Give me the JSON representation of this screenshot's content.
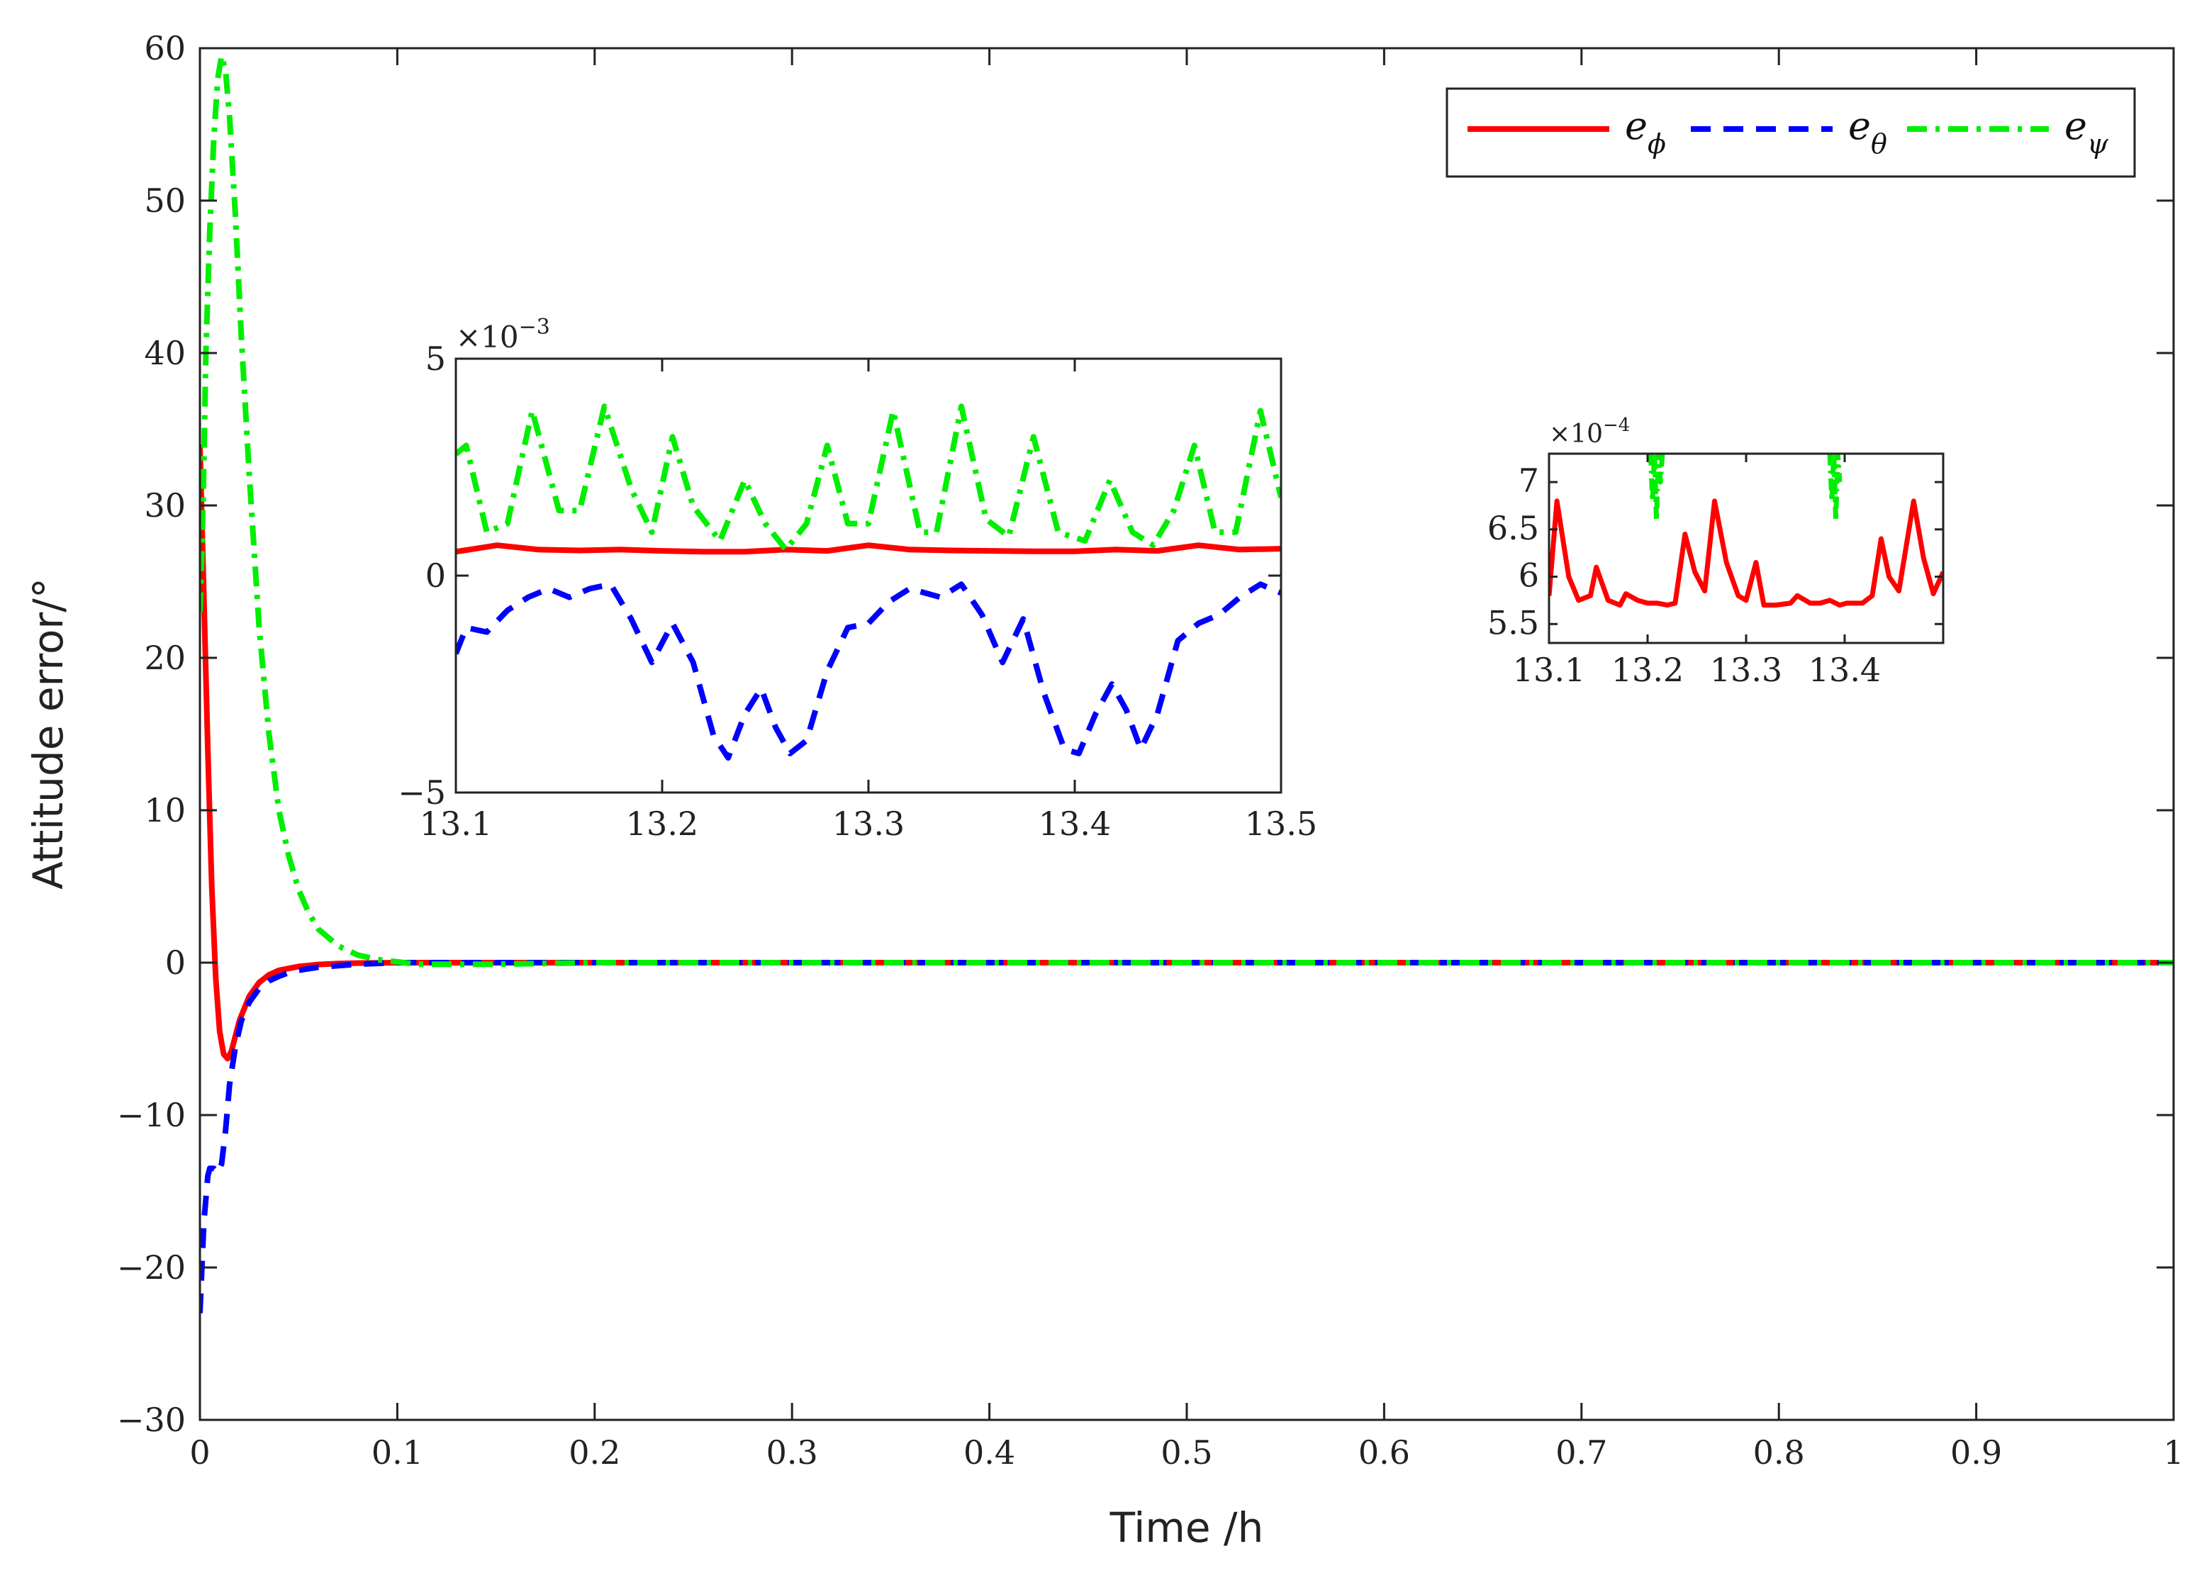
{
  "chart_data": {
    "type": "line",
    "xlabel": "Time /h",
    "ylabel": "Attitude error/°",
    "xlim": [
      0,
      1
    ],
    "ylim": [
      -30,
      60
    ],
    "xticks": [
      0,
      0.1,
      0.2,
      0.3,
      0.4,
      0.5,
      0.6,
      0.7,
      0.8,
      0.9,
      1
    ],
    "xtick_labels": [
      "0",
      "0.1",
      "0.2",
      "0.3",
      "0.4",
      "0.5",
      "0.6",
      "0.7",
      "0.8",
      "0.9",
      "1"
    ],
    "yticks": [
      -30,
      -20,
      -10,
      0,
      10,
      20,
      30,
      40,
      50,
      60
    ],
    "ytick_labels": [
      "−30",
      "−20",
      "−10",
      "0",
      "10",
      "20",
      "30",
      "40",
      "50",
      "60"
    ],
    "grid": false,
    "legend_position": "top-right",
    "series": [
      {
        "name": "e_phi",
        "label_main": "e",
        "label_sub": "ϕ",
        "color": "#ff0000",
        "style": "solid",
        "x": [
          0,
          0.002,
          0.004,
          0.006,
          0.008,
          0.01,
          0.012,
          0.014,
          0.016,
          0.018,
          0.02,
          0.025,
          0.03,
          0.035,
          0.04,
          0.05,
          0.06,
          0.07,
          0.08,
          0.1,
          0.15,
          0.2,
          0.3,
          0.5,
          0.7,
          1.0
        ],
        "y": [
          34,
          24,
          14,
          5,
          -1,
          -4.5,
          -6,
          -6.3,
          -5.8,
          -4.8,
          -3.8,
          -2.2,
          -1.3,
          -0.8,
          -0.5,
          -0.25,
          -0.12,
          -0.06,
          -0.03,
          0,
          0,
          0,
          0,
          0,
          0,
          0
        ]
      },
      {
        "name": "e_theta",
        "label_main": "e",
        "label_sub": "θ",
        "color": "#0000ff",
        "style": "dashed",
        "x": [
          0,
          0.001,
          0.002,
          0.003,
          0.004,
          0.005,
          0.007,
          0.009,
          0.011,
          0.013,
          0.015,
          0.018,
          0.021,
          0.025,
          0.03,
          0.035,
          0.04,
          0.045,
          0.05,
          0.06,
          0.07,
          0.08,
          0.1,
          0.2,
          0.4,
          0.6,
          0.8,
          1.0
        ],
        "y": [
          -23,
          -20,
          -17,
          -15.5,
          -14,
          -13.5,
          -13.5,
          -13.8,
          -13.2,
          -11,
          -8,
          -5.5,
          -3.8,
          -2.6,
          -1.7,
          -1.2,
          -0.9,
          -0.65,
          -0.5,
          -0.3,
          -0.2,
          -0.1,
          0,
          0,
          0,
          0,
          0,
          0
        ]
      },
      {
        "name": "e_psi",
        "label_main": "e",
        "label_sub": "ψ",
        "color": "#00ee00",
        "style": "dashdot",
        "x": [
          0,
          0.001,
          0.002,
          0.003,
          0.005,
          0.007,
          0.009,
          0.011,
          0.013,
          0.015,
          0.018,
          0.021,
          0.025,
          0.03,
          0.035,
          0.04,
          0.045,
          0.05,
          0.055,
          0.06,
          0.07,
          0.08,
          0.09,
          0.1,
          0.11,
          0.15,
          0.2,
          0.3,
          0.5,
          0.7,
          1.0
        ],
        "y": [
          23,
          27,
          33,
          40,
          48,
          54,
          58,
          59.5,
          58.5,
          55.5,
          49,
          41,
          32,
          22,
          15,
          10,
          7,
          4.8,
          3.3,
          2.2,
          1.1,
          0.5,
          0.2,
          0.05,
          -0.1,
          -0.1,
          0,
          0,
          0,
          0,
          0
        ]
      }
    ],
    "insets": [
      {
        "name": "inset-large",
        "xlim": [
          13.1,
          13.5
        ],
        "ylim": [
          -5,
          5
        ],
        "xticks": [
          13.1,
          13.2,
          13.3,
          13.4,
          13.5
        ],
        "xtick_labels": [
          "13.1",
          "13.2",
          "13.3",
          "13.4",
          "13.5"
        ],
        "yticks": [
          -5,
          0,
          5
        ],
        "ytick_labels": [
          "−5",
          "0",
          "5"
        ],
        "exponent_base": "×10",
        "exponent_power": "−3",
        "series": [
          {
            "name": "e_phi",
            "color": "#ff0000",
            "style": "solid",
            "x": [
              13.1,
              13.12,
              13.14,
              13.16,
              13.18,
              13.2,
              13.22,
              13.24,
              13.26,
              13.28,
              13.3,
              13.32,
              13.34,
              13.36,
              13.38,
              13.4,
              13.42,
              13.44,
              13.46,
              13.48,
              13.5
            ],
            "y": [
              0.55,
              0.7,
              0.6,
              0.58,
              0.6,
              0.57,
              0.55,
              0.55,
              0.6,
              0.57,
              0.7,
              0.6,
              0.58,
              0.57,
              0.56,
              0.56,
              0.6,
              0.57,
              0.7,
              0.6,
              0.62
            ]
          },
          {
            "name": "e_theta",
            "color": "#0000ff",
            "style": "dashed",
            "x": [
              13.1,
              13.105,
              13.115,
              13.125,
              13.135,
              13.145,
              13.155,
              13.165,
              13.175,
              13.185,
              13.195,
              13.205,
              13.215,
              13.225,
              13.232,
              13.24,
              13.248,
              13.255,
              13.262,
              13.27,
              13.28,
              13.29,
              13.3,
              13.31,
              13.32,
              13.335,
              13.345,
              13.355,
              13.365,
              13.375,
              13.385,
              13.395,
              13.402,
              13.41,
              13.418,
              13.425,
              13.432,
              13.44,
              13.45,
              13.46,
              13.47,
              13.48,
              13.49,
              13.5
            ],
            "y": [
              -1.8,
              -1.2,
              -1.3,
              -0.8,
              -0.5,
              -0.3,
              -0.5,
              -0.3,
              -0.2,
              -1.0,
              -2.0,
              -1.1,
              -2.0,
              -3.7,
              -4.2,
              -3.2,
              -2.6,
              -3.5,
              -4.1,
              -3.8,
              -2.2,
              -1.2,
              -1.1,
              -0.6,
              -0.3,
              -0.5,
              -0.2,
              -0.9,
              -2.0,
              -1.0,
              -2.7,
              -4.0,
              -4.1,
              -3.2,
              -2.5,
              -3.1,
              -4.0,
              -3.2,
              -1.5,
              -1.1,
              -0.9,
              -0.5,
              -0.2,
              -0.4
            ]
          },
          {
            "name": "e_psi",
            "color": "#00ee00",
            "style": "dashdot",
            "x": [
              13.1,
              13.105,
              13.115,
              13.125,
              13.137,
              13.15,
              13.16,
              13.172,
              13.185,
              13.195,
              13.205,
              13.215,
              13.228,
              13.24,
              13.25,
              13.26,
              13.27,
              13.28,
              13.29,
              13.3,
              13.312,
              13.325,
              13.333,
              13.345,
              13.357,
              13.368,
              13.38,
              13.392,
              13.405,
              13.417,
              13.428,
              13.438,
              13.448,
              13.458,
              13.468,
              13.478,
              13.49,
              13.5
            ],
            "y": [
              2.8,
              3.0,
              1.0,
              1.2,
              3.8,
              1.5,
              1.5,
              3.9,
              2.0,
              1.0,
              3.2,
              1.6,
              0.8,
              2.2,
              1.2,
              0.6,
              1.2,
              3.0,
              1.2,
              1.2,
              3.8,
              1.0,
              1.0,
              3.9,
              1.3,
              0.9,
              3.2,
              1.0,
              0.8,
              2.2,
              1.0,
              0.7,
              1.5,
              3.0,
              1.0,
              1.0,
              3.8,
              1.8
            ]
          }
        ]
      },
      {
        "name": "inset-small",
        "xlim": [
          13.1,
          13.5
        ],
        "ylim": [
          5.3,
          7.3
        ],
        "xticks": [
          13.1,
          13.2,
          13.3,
          13.4
        ],
        "xtick_labels": [
          "13.1",
          "13.2",
          "13.3",
          "13.4"
        ],
        "yticks": [
          5.5,
          6,
          6.5,
          7
        ],
        "ytick_labels": [
          "5.5",
          "6",
          "6.5",
          "7"
        ],
        "exponent_base": "×10",
        "exponent_power": "−4",
        "series": [
          {
            "name": "e_phi",
            "color": "#ff0000",
            "style": "solid",
            "x": [
              13.1,
              13.108,
              13.12,
              13.13,
              13.142,
              13.148,
              13.16,
              13.172,
              13.178,
              13.19,
              13.2,
              13.21,
              13.22,
              13.228,
              13.238,
              13.248,
              13.258,
              13.268,
              13.28,
              13.292,
              13.3,
              13.31,
              13.318,
              13.33,
              13.345,
              13.352,
              13.365,
              13.375,
              13.385,
              13.395,
              13.402,
              13.41,
              13.418,
              13.428,
              13.437,
              13.445,
              13.455,
              13.47,
              13.48,
              13.49,
              13.5
            ],
            "y": [
              5.8,
              6.8,
              6.0,
              5.75,
              5.8,
              6.1,
              5.75,
              5.7,
              5.82,
              5.75,
              5.72,
              5.72,
              5.7,
              5.72,
              6.45,
              6.05,
              5.85,
              6.8,
              6.15,
              5.8,
              5.75,
              6.15,
              5.7,
              5.7,
              5.72,
              5.8,
              5.72,
              5.72,
              5.75,
              5.7,
              5.72,
              5.72,
              5.72,
              5.8,
              6.4,
              6.0,
              5.85,
              6.8,
              6.2,
              5.82,
              6.05
            ]
          },
          {
            "name": "e_psi",
            "color": "#00ee00",
            "style": "dashdot",
            "x": [
              13.203,
              13.205,
              13.207,
              13.209,
              13.211,
              13.213,
              13.215
            ],
            "y": [
              7.3,
              6.8,
              7.3,
              6.6,
              7.3,
              7.0,
              7.3
            ]
          },
          {
            "name": "e_psi_2",
            "color": "#00ee00",
            "style": "dashdot",
            "x": [
              13.385,
              13.387,
              13.389,
              13.391,
              13.393,
              13.395
            ],
            "y": [
              7.3,
              6.8,
              7.3,
              6.6,
              7.3,
              7.0
            ]
          }
        ]
      }
    ]
  },
  "legend": [
    {
      "main": "e",
      "sub": "ϕ",
      "color": "#ff0000",
      "style": "solid"
    },
    {
      "main": "e",
      "sub": "θ",
      "color": "#0000ff",
      "style": "dashed"
    },
    {
      "main": "e",
      "sub": "ψ",
      "color": "#00ee00",
      "style": "dashdot"
    }
  ]
}
